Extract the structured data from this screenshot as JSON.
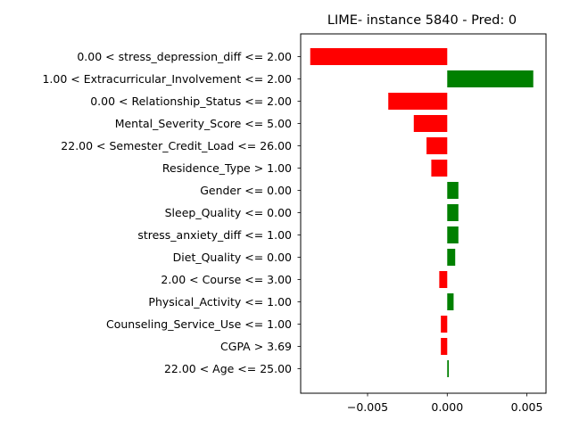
{
  "chart_data": {
    "type": "bar",
    "orientation": "horizontal",
    "title": "LIME- instance 5840 - Pred: 0",
    "xlabel": "",
    "ylabel": "",
    "xlim": [
      -0.0092,
      0.0062
    ],
    "xticks": [
      {
        "value": -0.005,
        "label": "−0.005"
      },
      {
        "value": 0.0,
        "label": "0.000"
      },
      {
        "value": 0.005,
        "label": "0.005"
      }
    ],
    "grid": false,
    "colors": {
      "positive": "#008000",
      "negative": "#ff0000"
    },
    "categories": [
      "0.00 < stress_depression_diff <= 2.00",
      "1.00 < Extracurricular_Involvement <= 2.00",
      "0.00 < Relationship_Status <= 2.00",
      "Mental_Severity_Score <= 5.00",
      "22.00 < Semester_Credit_Load <= 26.00",
      "Residence_Type > 1.00",
      "Gender <= 0.00",
      "Sleep_Quality <= 0.00",
      "stress_anxiety_diff <= 1.00",
      "Diet_Quality <= 0.00",
      "2.00 < Course <= 3.00",
      "Physical_Activity <= 1.00",
      "Counseling_Service_Use <= 1.00",
      "CGPA > 3.69",
      "22.00 < Age <= 25.00"
    ],
    "values": [
      -0.0086,
      0.0054,
      -0.0037,
      -0.0021,
      -0.0013,
      -0.001,
      0.0007,
      0.0007,
      0.0007,
      0.0005,
      -0.0005,
      0.0004,
      -0.0004,
      -0.0004,
      0.0001
    ]
  }
}
